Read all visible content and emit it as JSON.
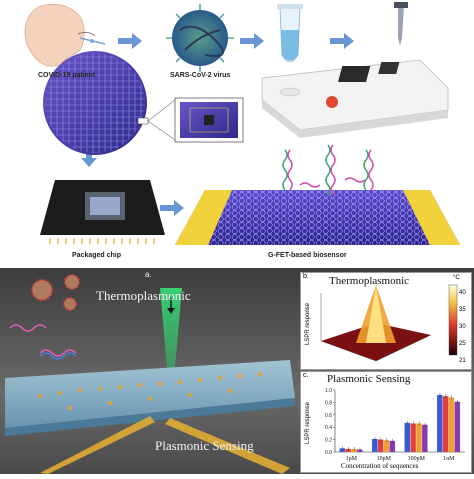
{
  "top": {
    "labels": {
      "patient": "COVID-19 patient",
      "virus": "SARS-CoV-2 virus",
      "chip": "Packaged chip",
      "biosensor": "G-FET-based biosensor"
    },
    "colors": {
      "arrow": "#6a96d6",
      "chip_blue": "#3a3aa8",
      "electrode": "#f2d23a"
    }
  },
  "bottom": {
    "panel_a_tag": "a.",
    "thermo_title": "Thermoplasmonic",
    "plasmonic_title": "Plasmonic Sensing",
    "panel_b": {
      "tag": "b.",
      "title": "Thermoplasmonic",
      "ylabel": "LSPR response",
      "colorbar_unit": "°C",
      "colorbar_ticks": [
        "40",
        "35",
        "30",
        "25",
        "21"
      ]
    },
    "panel_c": {
      "tag": "c.",
      "title": "Plasmonic Sensing",
      "ylabel": "LSPR response",
      "xlabel": "Concentration of sequences",
      "yticks": [
        "1.0",
        "0.8",
        "0.6",
        "0.4",
        "0.2",
        "0.0"
      ]
    }
  },
  "chart_data": {
    "type": "bar",
    "title": "Plasmonic Sensing",
    "xlabel": "Concentration of sequences",
    "ylabel": "LSPR response",
    "ylim": [
      0,
      1.0
    ],
    "categories": [
      "1pM",
      "10pM",
      "100pM",
      "1nM"
    ],
    "series": [
      {
        "values": [
          0.06,
          0.21,
          0.47,
          0.92
        ],
        "color": "#3a5bd6"
      },
      {
        "values": [
          0.05,
          0.2,
          0.46,
          0.9
        ],
        "color": "#e04040"
      },
      {
        "values": [
          0.05,
          0.19,
          0.46,
          0.88
        ],
        "color": "#f0a030"
      },
      {
        "values": [
          0.04,
          0.18,
          0.44,
          0.81
        ],
        "color": "#8a3ab0"
      }
    ]
  }
}
